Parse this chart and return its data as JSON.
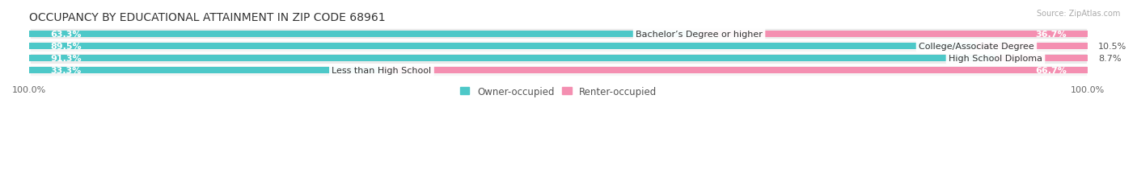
{
  "title": "OCCUPANCY BY EDUCATIONAL ATTAINMENT IN ZIP CODE 68961",
  "source": "Source: ZipAtlas.com",
  "categories": [
    "Less than High School",
    "High School Diploma",
    "College/Associate Degree",
    "Bachelor’s Degree or higher"
  ],
  "owner_pct": [
    33.3,
    91.3,
    89.5,
    63.3
  ],
  "renter_pct": [
    66.7,
    8.7,
    10.5,
    36.7
  ],
  "owner_color": "#4dc8c8",
  "renter_color": "#f48fb1",
  "row_bg_odd": "#f5f5f5",
  "row_bg_even": "#ebebeb",
  "title_fontsize": 10,
  "label_fontsize": 8,
  "pct_fontsize": 8,
  "axis_label_fontsize": 8,
  "legend_fontsize": 8.5,
  "bar_height": 0.52,
  "figsize": [
    14.06,
    2.32
  ],
  "dpi": 100
}
